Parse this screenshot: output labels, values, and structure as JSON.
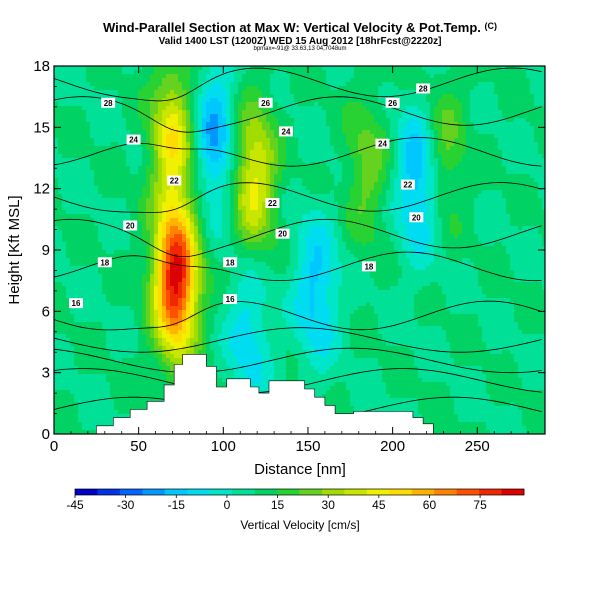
{
  "header": {
    "title_main": "Wind-Parallel Section at Max W: Vertical Velocity & Pot.Temp.",
    "title_mark": "(C)",
    "valid_line": "Valid 1400 LST (1200Z) WED 15 Aug 2012 [18hrFcst@2220z]",
    "info_line": "bpmax=-91@ 33.63,13 04,7048um"
  },
  "chart_data": {
    "type": "heatmap",
    "title": "Wind-Parallel Section at Max W: Vertical Velocity & Pot.Temp.",
    "subtitle": "Valid 1400 LST (1200Z) WED 15 Aug 2012 [18hrFcst@2220z]",
    "xlabel": "Distance [nm]",
    "ylabel": "Height [Kft MSL]",
    "xlim": [
      0,
      290
    ],
    "ylim": [
      0,
      18
    ],
    "xticks": [
      0,
      50,
      100,
      150,
      200,
      250
    ],
    "yticks": [
      0,
      3,
      6,
      9,
      12,
      15,
      18
    ],
    "colorbar": {
      "label": "Vertical Velocity [cm/s]",
      "range": [
        -45,
        88
      ],
      "tick_values": [
        -45,
        -30,
        -15,
        0,
        15,
        30,
        45,
        60,
        75
      ],
      "tick_labels": [
        "-45",
        "-30",
        "-15",
        "0",
        "15",
        "30",
        "45",
        "60",
        "75"
      ],
      "colors": [
        "#0000c8",
        "#0032e6",
        "#0064ff",
        "#0096ff",
        "#00c8ff",
        "#00dcf0",
        "#00e6c8",
        "#00e096",
        "#00d264",
        "#28d232",
        "#64d21e",
        "#a0dc00",
        "#c8e600",
        "#f0f000",
        "#ffdc00",
        "#ffb400",
        "#ff8200",
        "#ff5000",
        "#f02800",
        "#dc0000"
      ]
    },
    "vertical_velocity_features": [
      {
        "kind": "updraft",
        "x_center": 72,
        "height_center": 7.5,
        "peak_cm_s": 85
      },
      {
        "kind": "updraft",
        "x_center": 70,
        "height_center": 14.5,
        "peak_cm_s": 45
      },
      {
        "kind": "updraft",
        "x_center": 118,
        "height_center": 12.5,
        "peak_cm_s": 45
      },
      {
        "kind": "updraft",
        "x_center": 185,
        "height_center": 13,
        "peak_cm_s": 25
      },
      {
        "kind": "updraft",
        "x_center": 230,
        "height_center": 14,
        "peak_cm_s": 25
      },
      {
        "kind": "downdraft",
        "x_center": 95,
        "height_center": 14.5,
        "peak_cm_s": -20
      },
      {
        "kind": "downdraft",
        "x_center": 155,
        "height_center": 7,
        "peak_cm_s": -15
      },
      {
        "kind": "downdraft",
        "x_center": 215,
        "height_center": 12.5,
        "peak_cm_s": -20
      },
      {
        "kind": "downdraft",
        "x_center": 115,
        "height_center": 5,
        "peak_cm_s": -10
      }
    ],
    "potential_temperature_contour_labels": [
      {
        "value": "28",
        "x": 32,
        "height": 16.2
      },
      {
        "value": "26",
        "x": 125,
        "height": 16.2
      },
      {
        "value": "26",
        "x": 200,
        "height": 16.2
      },
      {
        "value": "28",
        "x": 218,
        "height": 16.9
      },
      {
        "value": "24",
        "x": 47,
        "height": 14.4
      },
      {
        "value": "24",
        "x": 137,
        "height": 14.8
      },
      {
        "value": "24",
        "x": 194,
        "height": 14.2
      },
      {
        "value": "22",
        "x": 71,
        "height": 12.4
      },
      {
        "value": "22",
        "x": 129,
        "height": 11.3
      },
      {
        "value": "22",
        "x": 209,
        "height": 12.2
      },
      {
        "value": "20",
        "x": 45,
        "height": 10.2
      },
      {
        "value": "20",
        "x": 135,
        "height": 9.8
      },
      {
        "value": "20",
        "x": 214,
        "height": 10.6
      },
      {
        "value": "18",
        "x": 30,
        "height": 8.4
      },
      {
        "value": "18",
        "x": 104,
        "height": 8.4
      },
      {
        "value": "18",
        "x": 186,
        "height": 8.2
      },
      {
        "value": "16",
        "x": 13,
        "height": 6.4
      },
      {
        "value": "16",
        "x": 104,
        "height": 6.6
      }
    ],
    "terrain_profile": [
      {
        "x": 0,
        "height": 0
      },
      {
        "x": 25,
        "height": 0
      },
      {
        "x": 25,
        "height": 0.4
      },
      {
        "x": 35,
        "height": 0.4
      },
      {
        "x": 35,
        "height": 0.8
      },
      {
        "x": 45,
        "height": 0.8
      },
      {
        "x": 45,
        "height": 1.2
      },
      {
        "x": 55,
        "height": 1.2
      },
      {
        "x": 55,
        "height": 1.6
      },
      {
        "x": 65,
        "height": 1.6
      },
      {
        "x": 65,
        "height": 2.4
      },
      {
        "x": 71,
        "height": 2.4
      },
      {
        "x": 71,
        "height": 3.4
      },
      {
        "x": 76,
        "height": 3.4
      },
      {
        "x": 76,
        "height": 3.9
      },
      {
        "x": 90,
        "height": 3.9
      },
      {
        "x": 90,
        "height": 3.3
      },
      {
        "x": 96,
        "height": 3.3
      },
      {
        "x": 96,
        "height": 2.3
      },
      {
        "x": 102,
        "height": 2.3
      },
      {
        "x": 102,
        "height": 2.7
      },
      {
        "x": 116,
        "height": 2.7
      },
      {
        "x": 116,
        "height": 2.3
      },
      {
        "x": 121,
        "height": 2.3
      },
      {
        "x": 121,
        "height": 2.0
      },
      {
        "x": 127,
        "height": 2.0
      },
      {
        "x": 127,
        "height": 2.6
      },
      {
        "x": 148,
        "height": 2.6
      },
      {
        "x": 148,
        "height": 2.2
      },
      {
        "x": 154,
        "height": 2.2
      },
      {
        "x": 154,
        "height": 1.8
      },
      {
        "x": 160,
        "height": 1.8
      },
      {
        "x": 160,
        "height": 1.4
      },
      {
        "x": 166,
        "height": 1.4
      },
      {
        "x": 166,
        "height": 1.0
      },
      {
        "x": 177,
        "height": 1.0
      },
      {
        "x": 177,
        "height": 1.1
      },
      {
        "x": 212,
        "height": 1.1
      },
      {
        "x": 212,
        "height": 0.8
      },
      {
        "x": 218,
        "height": 0.8
      },
      {
        "x": 218,
        "height": 0.5
      },
      {
        "x": 224,
        "height": 0.5
      },
      {
        "x": 224,
        "height": 0
      },
      {
        "x": 290,
        "height": 0
      }
    ]
  }
}
